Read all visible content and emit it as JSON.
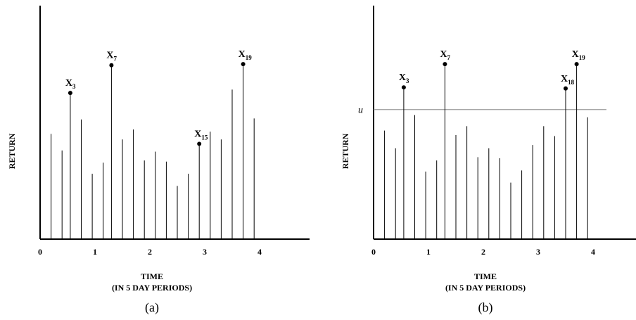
{
  "chart_data": [
    {
      "type": "bar",
      "panel_label": "(a)",
      "xlabel": "TIME",
      "xlabel_sub": "(IN 5 DAY PERIODS)",
      "ylabel": "RETURN",
      "xlim": [
        0,
        4.9
      ],
      "ylim": [
        0,
        21
      ],
      "x_ticks": [
        "0",
        "1",
        "2",
        "3",
        "4"
      ],
      "x": [
        0.2,
        0.4,
        0.55,
        0.75,
        0.95,
        1.15,
        1.3,
        1.5,
        1.7,
        1.9,
        2.1,
        2.3,
        2.5,
        2.7,
        2.9,
        3.1,
        3.3,
        3.5,
        3.7,
        3.9
      ],
      "values": [
        9.5,
        8.0,
        13.2,
        10.8,
        5.9,
        6.9,
        15.7,
        9.0,
        9.9,
        7.1,
        7.9,
        7.0,
        4.8,
        5.9,
        8.6,
        9.7,
        9.0,
        13.5,
        15.8,
        10.9
      ],
      "labeled_points": [
        {
          "index": 2,
          "main": "X",
          "sub": "3"
        },
        {
          "index": 6,
          "main": "X",
          "sub": "7"
        },
        {
          "index": 14,
          "main": "X",
          "sub": "15"
        },
        {
          "index": 18,
          "main": "X",
          "sub": "19"
        }
      ]
    },
    {
      "type": "bar",
      "panel_label": "(b)",
      "xlabel": "TIME",
      "xlabel_sub": "(IN 5 DAY PERIODS)",
      "ylabel": "RETURN",
      "xlim": [
        0,
        4.9
      ],
      "ylim": [
        0,
        21
      ],
      "x_ticks": [
        "0",
        "1",
        "2",
        "3",
        "4"
      ],
      "x": [
        0.2,
        0.4,
        0.55,
        0.75,
        0.95,
        1.15,
        1.3,
        1.5,
        1.7,
        1.9,
        2.1,
        2.3,
        2.5,
        2.7,
        2.9,
        3.1,
        3.3,
        3.5,
        3.7,
        3.9
      ],
      "values": [
        9.8,
        8.2,
        13.7,
        11.2,
        6.1,
        7.1,
        15.8,
        9.4,
        10.2,
        7.4,
        8.2,
        7.3,
        5.1,
        6.2,
        8.5,
        10.2,
        9.3,
        13.6,
        15.8,
        11.0
      ],
      "threshold": {
        "label": "u",
        "value": 11.7
      },
      "labeled_points": [
        {
          "index": 2,
          "main": "X",
          "sub": "3"
        },
        {
          "index": 6,
          "main": "X",
          "sub": "7"
        },
        {
          "index": 17,
          "main": "X",
          "sub": "18"
        },
        {
          "index": 18,
          "main": "X",
          "sub": "19"
        }
      ]
    }
  ]
}
